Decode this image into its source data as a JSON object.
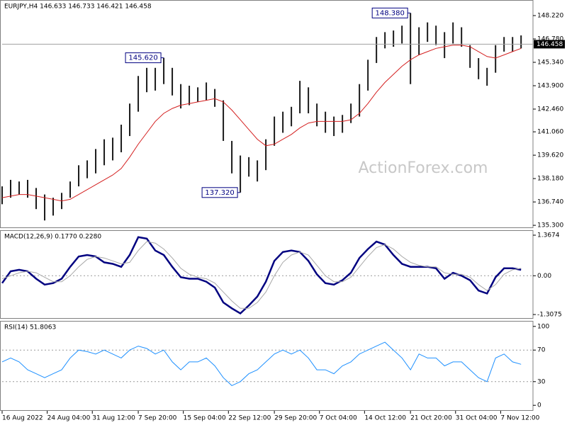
{
  "chart_data": [
    {
      "type": "ohlc",
      "title": "EURJPY,H4  146.633 146.733 146.421 146.458",
      "watermark": "ActionForex.com",
      "color": "#1a1a1a",
      "ma_color": "#d42020",
      "xlim": [
        0,
        62.4
      ],
      "ylim": [
        135.13,
        149.18
      ],
      "yticks": [
        {
          "value": 148.22,
          "label": "148.220"
        },
        {
          "value": 146.78,
          "label": "146.780"
        },
        {
          "value": 145.34,
          "label": "145.340"
        },
        {
          "value": 143.9,
          "label": "143.900"
        },
        {
          "value": 142.46,
          "label": "142.460"
        },
        {
          "value": 141.06,
          "label": "141.060"
        },
        {
          "value": 139.62,
          "label": "139.620"
        },
        {
          "value": 138.18,
          "label": "138.180"
        },
        {
          "value": 136.74,
          "label": "136.740"
        },
        {
          "value": 135.3,
          "label": "135.300"
        }
      ],
      "high": [
        137.7,
        138.1,
        138.0,
        138.1,
        137.6,
        137.2,
        137.0,
        137.3,
        138.0,
        139.0,
        139.3,
        140.0,
        140.6,
        140.7,
        141.5,
        142.8,
        144.5,
        145.0,
        145.0,
        145.62,
        145.0,
        144.0,
        143.9,
        143.8,
        144.1,
        143.7,
        143.0,
        140.5,
        139.6,
        139.5,
        139.3,
        140.6,
        142.0,
        142.3,
        142.6,
        144.2,
        143.8,
        142.8,
        142.3,
        142.0,
        142.1,
        142.8,
        144.0,
        145.5,
        146.9,
        147.2,
        147.3,
        147.6,
        148.38,
        147.5,
        147.8,
        147.6,
        147.2,
        147.8,
        147.5,
        146.4,
        145.6,
        145.0,
        146.4,
        146.9,
        146.9,
        147.0
      ],
      "low": [
        136.6,
        137.0,
        137.2,
        137.0,
        136.3,
        135.6,
        135.9,
        136.3,
        137.0,
        137.7,
        138.2,
        138.5,
        139.0,
        139.3,
        139.8,
        140.8,
        142.3,
        143.5,
        143.6,
        144.0,
        143.3,
        142.5,
        142.7,
        142.9,
        143.0,
        142.6,
        140.5,
        138.5,
        137.32,
        138.3,
        138.0,
        138.7,
        140.2,
        141.0,
        141.4,
        142.2,
        142.2,
        141.4,
        141.0,
        140.8,
        141.0,
        141.6,
        142.0,
        143.6,
        145.3,
        146.2,
        146.3,
        146.5,
        144.0,
        145.8,
        146.6,
        146.4,
        145.6,
        146.5,
        146.3,
        145.0,
        144.3,
        143.9,
        144.7,
        146.0,
        146.0,
        146.2
      ],
      "ma_values": [
        137.0,
        137.1,
        137.2,
        137.2,
        137.1,
        137.0,
        136.9,
        136.8,
        136.9,
        137.2,
        137.5,
        137.8,
        138.1,
        138.4,
        138.8,
        139.5,
        140.3,
        141.0,
        141.7,
        142.2,
        142.5,
        142.7,
        142.8,
        142.9,
        143.0,
        143.1,
        142.9,
        142.4,
        141.8,
        141.2,
        140.6,
        140.2,
        140.3,
        140.6,
        140.9,
        141.3,
        141.6,
        141.7,
        141.7,
        141.7,
        141.7,
        141.8,
        142.2,
        142.8,
        143.5,
        144.1,
        144.6,
        145.1,
        145.5,
        145.8,
        146.0,
        146.2,
        146.3,
        146.4,
        146.4,
        146.3,
        146.0,
        145.7,
        145.6,
        145.8,
        146.0,
        146.2
      ],
      "last_price": {
        "value": 146.458,
        "label": "146.458"
      },
      "annotations": [
        {
          "x": 19,
          "value": 145.62,
          "label": "145.620"
        },
        {
          "x": 28,
          "value": 137.32,
          "label": "137.320"
        },
        {
          "x": 48,
          "value": 148.38,
          "label": "148.380"
        }
      ]
    },
    {
      "type": "line",
      "title": "MACD(12,26,9) 0.1770 0.2280",
      "xlim": [
        0,
        62.4
      ],
      "ylim": [
        -1.45,
        1.535
      ],
      "yticks": [
        1.3674,
        {
          "value": 0,
          "label": "0.00"
        },
        -1.3075
      ],
      "levels": [
        0
      ],
      "series": [
        {
          "color": "#000080",
          "values": [
            -0.25,
            0.15,
            0.2,
            0.15,
            -0.1,
            -0.3,
            -0.25,
            -0.1,
            0.3,
            0.65,
            0.7,
            0.65,
            0.45,
            0.4,
            0.3,
            0.7,
            1.3,
            1.25,
            0.85,
            0.7,
            0.3,
            -0.05,
            -0.1,
            -0.1,
            -0.2,
            -0.4,
            -0.9,
            -1.1,
            -1.27,
            -1.0,
            -0.7,
            -0.2,
            0.5,
            0.8,
            0.85,
            0.8,
            0.5,
            0.05,
            -0.25,
            -0.3,
            -0.15,
            0.1,
            0.6,
            0.9,
            1.15,
            1.05,
            0.7,
            0.4,
            0.3,
            0.3,
            0.3,
            0.25,
            -0.1,
            0.1,
            0.0,
            -0.15,
            -0.5,
            -0.6,
            -0.05,
            0.25,
            0.25,
            0.2
          ]
        },
        {
          "color": "#a8a8a8",
          "values": [
            -0.1,
            0.0,
            0.1,
            0.15,
            0.1,
            -0.05,
            -0.2,
            -0.2,
            0.0,
            0.3,
            0.55,
            0.65,
            0.6,
            0.5,
            0.4,
            0.45,
            0.85,
            1.15,
            1.1,
            0.9,
            0.6,
            0.25,
            0.05,
            -0.05,
            -0.1,
            -0.25,
            -0.55,
            -0.85,
            -1.1,
            -1.1,
            -0.9,
            -0.55,
            0.0,
            0.45,
            0.7,
            0.8,
            0.7,
            0.35,
            0.0,
            -0.2,
            -0.2,
            -0.05,
            0.3,
            0.65,
            0.95,
            1.05,
            0.9,
            0.65,
            0.45,
            0.35,
            0.3,
            0.3,
            0.1,
            0.05,
            0.05,
            -0.05,
            -0.3,
            -0.5,
            -0.3,
            0.05,
            0.2,
            0.25
          ]
        }
      ]
    },
    {
      "type": "line",
      "title": "RSI(14) 51.8063",
      "xlim": [
        0,
        62.4
      ],
      "ylim": [
        -7,
        107
      ],
      "yticks": [
        100,
        70,
        30,
        0
      ],
      "levels": [
        70,
        30
      ],
      "xticks": [
        {
          "value": 0,
          "label": "16 Aug 2022"
        },
        {
          "value": 5.3,
          "label": "24 Aug 04:00"
        },
        {
          "value": 10.6,
          "label": "31 Aug 12:00"
        },
        {
          "value": 16,
          "label": "7 Sep 20:00"
        },
        {
          "value": 21.3,
          "label": "15 Sep 04:00"
        },
        {
          "value": 26.6,
          "label": "22 Sep 12:00"
        },
        {
          "value": 32,
          "label": "29 Sep 20:00"
        },
        {
          "value": 37.3,
          "label": "7 Oct 04:00"
        },
        {
          "value": 42.6,
          "label": "14 Oct 12:00"
        },
        {
          "value": 48,
          "label": "21 Oct 20:00"
        },
        {
          "value": 53.3,
          "label": "31 Oct 04:00"
        },
        {
          "value": 58.6,
          "label": "7 Nov 12:00"
        }
      ],
      "series": [
        {
          "color": "#1e90ff",
          "values": [
            55,
            60,
            55,
            45,
            40,
            35,
            40,
            45,
            60,
            70,
            68,
            65,
            70,
            65,
            60,
            70,
            75,
            72,
            65,
            70,
            55,
            45,
            55,
            55,
            60,
            50,
            35,
            25,
            30,
            40,
            45,
            55,
            65,
            70,
            65,
            70,
            60,
            45,
            45,
            40,
            50,
            55,
            65,
            70,
            75,
            80,
            70,
            60,
            45,
            65,
            60,
            60,
            50,
            55,
            55,
            45,
            35,
            30,
            60,
            65,
            55,
            52
          ]
        }
      ]
    }
  ]
}
